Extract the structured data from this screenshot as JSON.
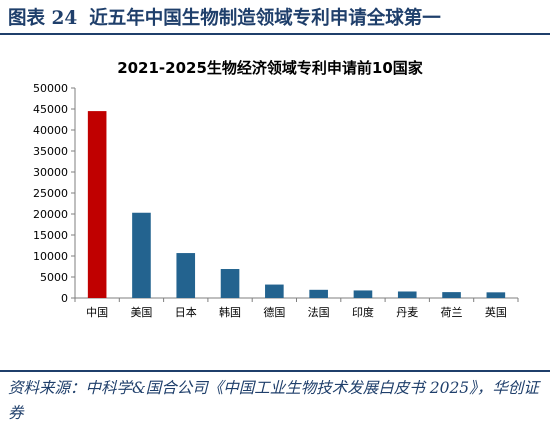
{
  "figure": {
    "label": "图表 24",
    "title": "近五年中国生物制造领域专利申请全球第一"
  },
  "source_note": "资料来源：中科学&国合公司《中国工业生物技术发展白皮书 2025》，华创证券",
  "colors": {
    "header": "#1f3f6b",
    "bar_highlight": "#c00000",
    "bar_default": "#23638f",
    "axis": "#7f7f7f"
  },
  "chart_data": {
    "type": "bar",
    "title": "2021-2025生物经济领域专利申请前10国家",
    "xlabel": "",
    "ylabel": "",
    "ylim": [
      0,
      50000
    ],
    "yticks": [
      0,
      5000,
      10000,
      15000,
      20000,
      25000,
      30000,
      35000,
      40000,
      45000,
      50000
    ],
    "categories": [
      "中国",
      "美国",
      "日本",
      "韩国",
      "德国",
      "法国",
      "印度",
      "丹麦",
      "荷兰",
      "英国"
    ],
    "values": [
      44500,
      20300,
      10700,
      6900,
      3200,
      1950,
      1800,
      1550,
      1400,
      1350
    ],
    "highlight_index": 0,
    "grid": false,
    "legend": false
  }
}
